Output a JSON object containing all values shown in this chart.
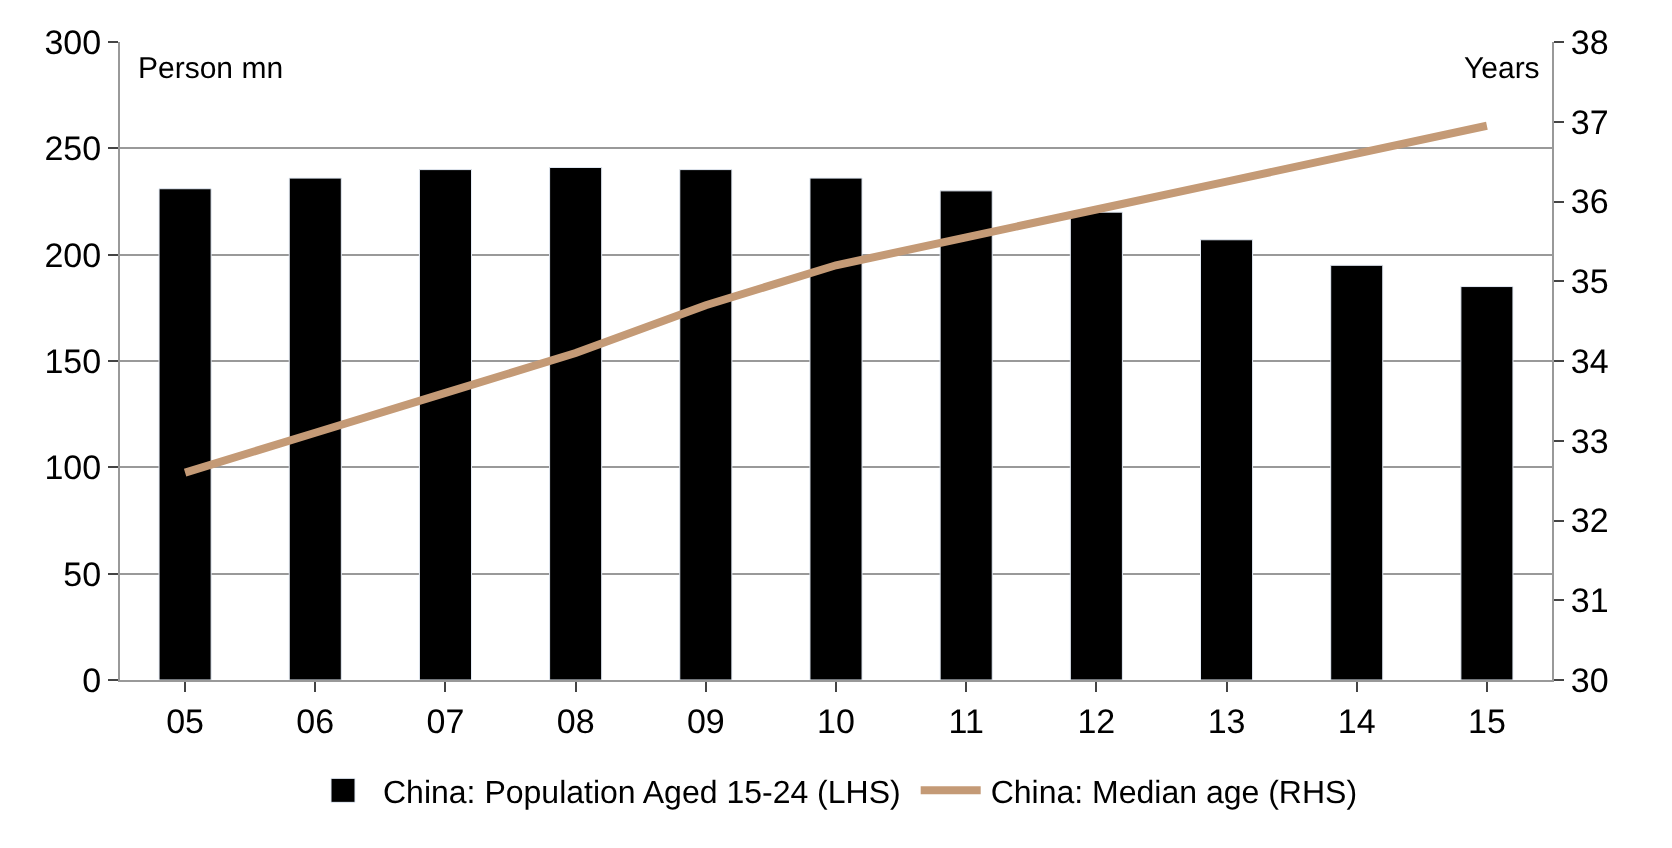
{
  "chart_data": {
    "type": "bar",
    "categories": [
      "05",
      "06",
      "07",
      "08",
      "09",
      "10",
      "11",
      "12",
      "13",
      "14",
      "15"
    ],
    "series": [
      {
        "name": "China: Population Aged 15-24 (LHS)",
        "color": "#000000",
        "values": [
          231,
          236,
          240,
          241,
          240,
          236,
          230,
          220,
          207,
          195,
          185
        ]
      },
      {
        "name": "China: Median age (RHS)",
        "type": "line",
        "axis": "y2",
        "color": "#c49a76",
        "values": [
          32.6,
          33.1,
          33.6,
          34.1,
          34.7,
          35.2,
          35.55,
          35.9,
          36.25,
          36.6,
          36.95
        ]
      }
    ],
    "ylabel": "Person mn",
    "y2label": "Years",
    "ylim": [
      0,
      300
    ],
    "yticks": [
      0,
      50,
      100,
      150,
      200,
      250,
      300
    ],
    "y2lim": [
      30,
      38
    ],
    "y2ticks": [
      30,
      31,
      32,
      33,
      34,
      35,
      36,
      37,
      38
    ],
    "grid": "y",
    "legend": "bottom"
  }
}
